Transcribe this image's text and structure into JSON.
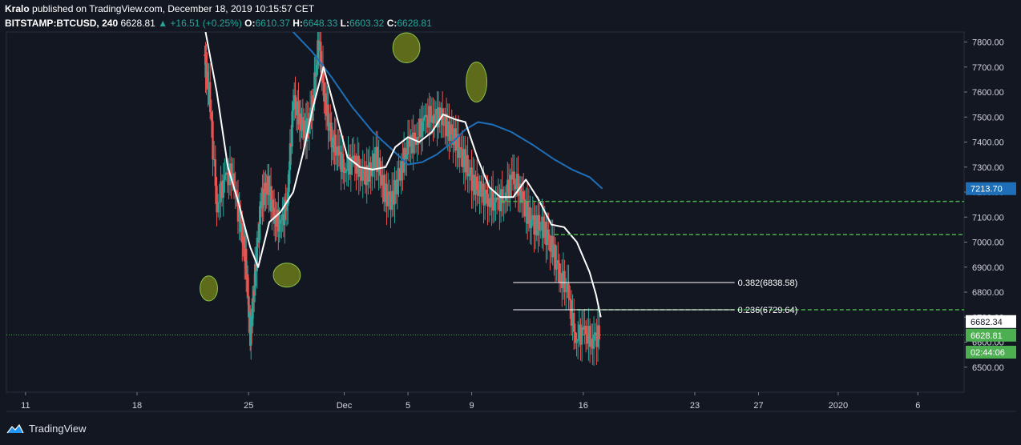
{
  "header": {
    "author": "Kralo",
    "published_text": "published on TradingView.com, December 18, 2019 10:15:57 CET",
    "symbol": "BITSTAMP:BTCUSD, 240",
    "last": "6628.81",
    "change": "▲ +16.51 (+0.25%)",
    "o_label": "O:",
    "o_value": "6610.37",
    "h_label": "H:",
    "h_value": "6648.33",
    "l_label": "L:",
    "l_value": "6603.32",
    "c_label": "C:",
    "c_value": "6628.81"
  },
  "footer": {
    "brand": "TradingView",
    "logo_icon": "tradingview-logo-icon"
  },
  "colors": {
    "background": "#131722",
    "up": "#26a69a",
    "down": "#ef5350",
    "ma_fast": "#ffffff",
    "ma_slow": "#1e6fb8",
    "level_line": "#4caf50",
    "ellipse": "#6b7a1a"
  },
  "chart_data": {
    "type": "line",
    "ylim": [
      6400,
      7840
    ],
    "y_ticks": [
      "7800.00",
      "7700.00",
      "7600.00",
      "7500.00",
      "7400.00",
      "7300.00",
      "7200.00",
      "7100.00",
      "7000.00",
      "6900.00",
      "6800.00",
      "6700.00",
      "6600.00",
      "6500.00"
    ],
    "x_ticks": [
      "11",
      "18",
      "25",
      "Dec",
      "5",
      "9",
      "16",
      "23",
      "27",
      "2020",
      "6"
    ],
    "x_tick_days": [
      11,
      18,
      25,
      31,
      35,
      39,
      46,
      53,
      57,
      62,
      67
    ],
    "xlim_days": [
      9.8,
      69.9
    ],
    "grid": false,
    "series": [
      {
        "role": "fast_ma",
        "x_days": [
          22.3,
          23.0,
          23.7,
          24.4,
          25.1,
          25.6,
          26.3,
          27.0,
          27.8,
          28.4,
          29.0,
          29.7,
          30.5,
          31.2,
          32.0,
          32.8,
          33.6,
          34.2,
          35.0,
          35.7,
          36.5,
          37.2,
          38.0,
          38.6,
          39.4,
          40.1,
          40.8,
          41.6,
          42.4,
          43.2,
          44.0,
          44.8,
          45.6,
          46.4,
          46.8,
          47.1
        ],
        "y": [
          7840,
          7600,
          7300,
          7150,
          6980,
          6900,
          7080,
          7120,
          7200,
          7350,
          7530,
          7700,
          7510,
          7340,
          7300,
          7290,
          7300,
          7380,
          7420,
          7400,
          7440,
          7510,
          7490,
          7480,
          7330,
          7220,
          7180,
          7180,
          7250,
          7170,
          7070,
          7060,
          7000,
          6880,
          6790,
          6700
        ]
      },
      {
        "role": "slow_ma",
        "x_days": [
          27.8,
          29.0,
          30.2,
          31.5,
          32.8,
          34.0,
          35.0,
          35.9,
          36.8,
          37.8,
          38.6,
          39.4,
          40.3,
          41.5,
          42.8,
          44.2,
          45.3,
          46.4,
          47.2
        ],
        "y": [
          7840,
          7760,
          7660,
          7540,
          7440,
          7370,
          7310,
          7320,
          7350,
          7400,
          7450,
          7480,
          7470,
          7440,
          7390,
          7330,
          7290,
          7260,
          7213.7
        ]
      },
      {
        "role": "price_close",
        "x_days": [
          22.2,
          22.5,
          23.0,
          23.5,
          24.0,
          24.5,
          24.8,
          25.1,
          25.4,
          25.8,
          26.2,
          26.6,
          27.0,
          27.4,
          27.8,
          28.2,
          28.6,
          29.0,
          29.4,
          29.8,
          30.2,
          30.6,
          31.0,
          31.5,
          32.0,
          32.5,
          33.0,
          33.5,
          34.0,
          34.5,
          35.0,
          35.5,
          36.0,
          36.5,
          37.0,
          37.5,
          38.0,
          38.5,
          39.0,
          39.5,
          40.0,
          40.5,
          41.0,
          41.5,
          42.0,
          42.5,
          43.0,
          43.5,
          44.0,
          44.5,
          45.0,
          45.5,
          46.0,
          46.5,
          47.0
        ],
        "y": [
          7750,
          7600,
          7150,
          7250,
          7280,
          7050,
          6950,
          6620,
          6870,
          7180,
          7220,
          7110,
          7060,
          7160,
          7560,
          7500,
          7430,
          7550,
          7810,
          7550,
          7420,
          7350,
          7300,
          7320,
          7290,
          7260,
          7350,
          7200,
          7160,
          7290,
          7380,
          7420,
          7480,
          7510,
          7500,
          7460,
          7400,
          7330,
          7250,
          7200,
          7180,
          7150,
          7180,
          7250,
          7220,
          7100,
          7070,
          7060,
          6980,
          6880,
          6800,
          6620,
          6640,
          6610,
          6628.81
        ]
      }
    ],
    "levels": [
      {
        "price": 7163,
        "style": "dashed",
        "color": "#4caf50",
        "x_start_day": 40.8
      },
      {
        "price": 7030,
        "style": "dashed",
        "color": "#4caf50",
        "x_start_day": 44.2
      },
      {
        "price": 6729.64,
        "style": "dashed",
        "color": "#4caf50",
        "x_start_day": 45.6
      },
      {
        "price": 6628.81,
        "style": "dotted",
        "color": "#4caf50",
        "x_start_day": 9.8
      }
    ],
    "fibonacci": [
      {
        "label": "0.382(6838.58)",
        "price": 6838.58,
        "x_start_day": 41.6,
        "x_end_day": 55.5
      },
      {
        "label": "0.236(6729.64)",
        "price": 6729.64,
        "x_start_day": 41.6,
        "x_end_day": 55.5
      }
    ],
    "ellipses": [
      {
        "day": 22.5,
        "price": 6815,
        "rx_days": 0.55,
        "ry_price": 50
      },
      {
        "day": 27.4,
        "price": 6868,
        "rx_days": 0.85,
        "ry_price": 48
      },
      {
        "day": 34.9,
        "price": 7777,
        "rx_days": 0.85,
        "ry_price": 60
      },
      {
        "day": 39.3,
        "price": 7640,
        "rx_days": 0.65,
        "ry_price": 80
      }
    ],
    "price_labels": [
      {
        "text": "7213.70",
        "price": 7213.7,
        "bg": "#1e6fb8",
        "fg": "#ffffff"
      },
      {
        "text": "6682.34",
        "price": 6682.34,
        "bg": "#ffffff",
        "fg": "#131722"
      },
      {
        "text": "6628.81",
        "price": 6628.81,
        "bg": "#4caf50",
        "fg": "#ffffff"
      },
      {
        "text": "02:44:06",
        "price": 6560,
        "bg": "#4caf50",
        "fg": "#ffffff"
      }
    ]
  }
}
